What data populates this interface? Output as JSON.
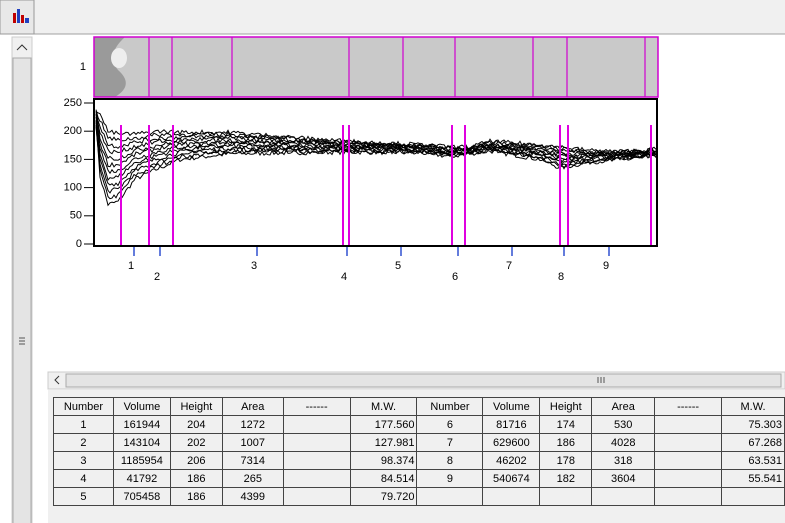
{
  "lane": {
    "label": "1"
  },
  "profile": {
    "ylim": [
      0,
      250
    ],
    "yticks": [
      0,
      50,
      100,
      150,
      200,
      250
    ]
  },
  "bands": [
    "1",
    "2",
    "3",
    "4",
    "5",
    "6",
    "7",
    "8",
    "9"
  ],
  "table": {
    "headers": [
      "Number",
      "Volume",
      "Height",
      "Area",
      "------",
      "M.W.",
      "Number",
      "Volume",
      "Height",
      "Area",
      "------",
      "M.W."
    ],
    "rows": [
      {
        "left": [
          "1",
          "161944",
          "204",
          "1272",
          "177.560"
        ],
        "right": [
          "6",
          "81716",
          "174",
          "530",
          "75.303"
        ]
      },
      {
        "left": [
          "2",
          "143104",
          "202",
          "1007",
          "127.981"
        ],
        "right": [
          "7",
          "629600",
          "186",
          "4028",
          "67.268"
        ]
      },
      {
        "left": [
          "3",
          "1185954",
          "206",
          "7314",
          "98.374"
        ],
        "right": [
          "8",
          "46202",
          "178",
          "318",
          "63.531"
        ]
      },
      {
        "left": [
          "4",
          "41792",
          "186",
          "265",
          "84.514"
        ],
        "right": [
          "9",
          "540674",
          "182",
          "3604",
          "55.541"
        ]
      },
      {
        "left": [
          "5",
          "705458",
          "186",
          "4399",
          "79.720"
        ]
      }
    ]
  }
}
